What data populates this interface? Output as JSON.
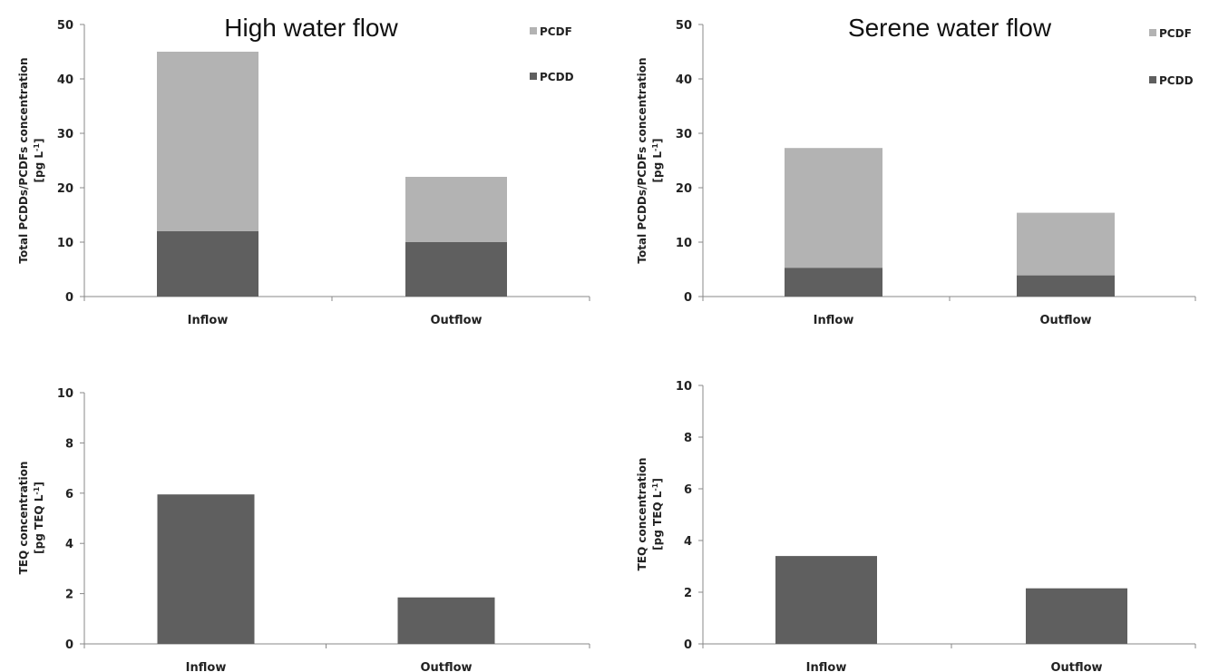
{
  "chart_data": [
    {
      "type": "bar",
      "stacked": true,
      "title": "High water flow",
      "categories": [
        "Inflow",
        "Outflow"
      ],
      "series": [
        {
          "name": "PCDD",
          "values": [
            12,
            10
          ],
          "color": "#5f5f5f"
        },
        {
          "name": "PCDF",
          "values": [
            33,
            12
          ],
          "color": "#b3b3b3"
        }
      ],
      "ylabel_line1": "Total PCDDs/PCDFs concentration",
      "ylabel_line2": "[pg L",
      "ylabel_sup": "-1",
      "ylabel_end": "]",
      "ylim": [
        0,
        50
      ],
      "yticks": [
        0,
        10,
        20,
        30,
        40,
        50
      ],
      "grid": false,
      "legend": "top-right"
    },
    {
      "type": "bar",
      "stacked": true,
      "title": "Serene water flow",
      "categories": [
        "Inflow",
        "Outflow"
      ],
      "series": [
        {
          "name": "PCDD",
          "values": [
            5.3,
            3.9
          ],
          "color": "#5f5f5f"
        },
        {
          "name": "PCDF",
          "values": [
            22,
            11.5
          ],
          "color": "#b3b3b3"
        }
      ],
      "ylabel_line1": "Total PCDDs/PCDFs concentration",
      "ylabel_line2": "[pg L",
      "ylabel_sup": "-1",
      "ylabel_end": "]",
      "ylim": [
        0,
        50
      ],
      "yticks": [
        0,
        10,
        20,
        30,
        40,
        50
      ],
      "grid": false,
      "legend": "top-right"
    },
    {
      "type": "bar",
      "title": "",
      "categories": [
        "Inflow",
        "Outflow"
      ],
      "series": [
        {
          "values": [
            5.95,
            1.85
          ],
          "color": "#5f5f5f"
        }
      ],
      "ylabel_line1": "TEQ concentration",
      "ylabel_line2": "[pg TEQ L",
      "ylabel_sup": "-1",
      "ylabel_end": "]",
      "ylim": [
        0,
        10
      ],
      "yticks": [
        0,
        2,
        4,
        6,
        8,
        10
      ],
      "grid": false
    },
    {
      "type": "bar",
      "title": "",
      "categories": [
        "Inflow",
        "Outflow"
      ],
      "series": [
        {
          "values": [
            3.4,
            2.15
          ],
          "color": "#5f5f5f"
        }
      ],
      "ylabel_line1": "TEQ concentration",
      "ylabel_line2": "[pg TEQ L",
      "ylabel_sup": "-1",
      "ylabel_end": "]",
      "ylim": [
        0,
        10
      ],
      "yticks": [
        0,
        2,
        4,
        6,
        8,
        10
      ],
      "grid": false
    }
  ]
}
